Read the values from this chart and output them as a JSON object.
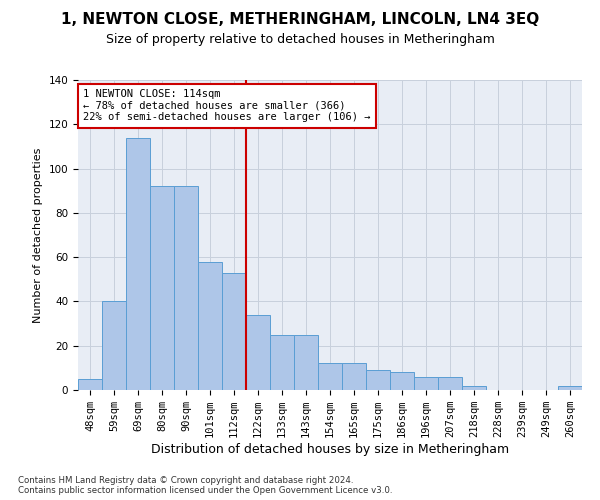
{
  "title": "1, NEWTON CLOSE, METHERINGHAM, LINCOLN, LN4 3EQ",
  "subtitle": "Size of property relative to detached houses in Metheringham",
  "xlabel_bottom": "Distribution of detached houses by size in Metheringham",
  "ylabel": "Number of detached properties",
  "categories": [
    "48sqm",
    "59sqm",
    "69sqm",
    "80sqm",
    "90sqm",
    "101sqm",
    "112sqm",
    "122sqm",
    "133sqm",
    "143sqm",
    "154sqm",
    "165sqm",
    "175sqm",
    "186sqm",
    "196sqm",
    "207sqm",
    "218sqm",
    "228sqm",
    "239sqm",
    "249sqm",
    "260sqm"
  ],
  "values": [
    5,
    40,
    114,
    92,
    92,
    58,
    53,
    34,
    25,
    25,
    12,
    12,
    9,
    8,
    6,
    6,
    2,
    0,
    0,
    0,
    2
  ],
  "bar_color": "#aec6e8",
  "bar_edge_color": "#5a9ed4",
  "vline_index": 6,
  "vline_color": "#cc0000",
  "annotation_box_text": "1 NEWTON CLOSE: 114sqm\n← 78% of detached houses are smaller (366)\n22% of semi-detached houses are larger (106) →",
  "annotation_fontsize": 7.5,
  "ylim": [
    0,
    140
  ],
  "yticks": [
    0,
    20,
    40,
    60,
    80,
    100,
    120,
    140
  ],
  "grid_color": "#c8d0dc",
  "background_color": "#e8edf5",
  "footer_text": "Contains HM Land Registry data © Crown copyright and database right 2024.\nContains public sector information licensed under the Open Government Licence v3.0.",
  "title_fontsize": 11,
  "subtitle_fontsize": 9,
  "ylabel_fontsize": 8,
  "tick_fontsize": 7.5
}
